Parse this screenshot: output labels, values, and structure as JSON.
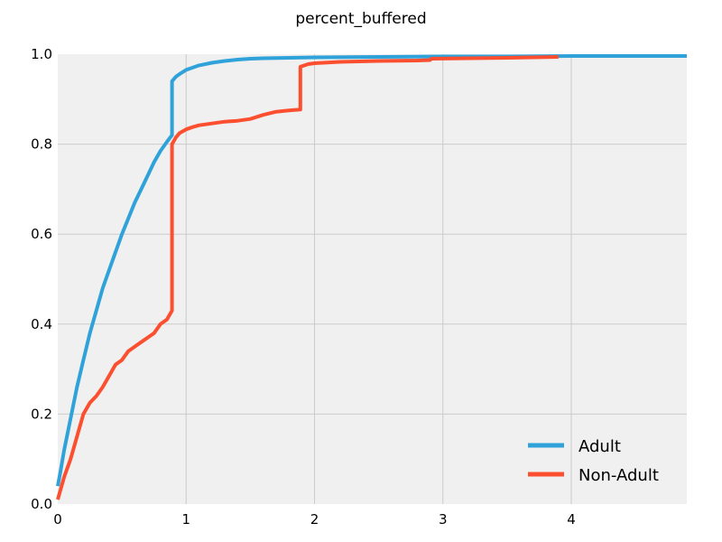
{
  "chart_data": {
    "type": "line",
    "title": "percent_buffered",
    "xlabel": "",
    "ylabel": "",
    "xlim": [
      0,
      4.9
    ],
    "ylim": [
      0,
      1.0
    ],
    "xticks": [
      0,
      1,
      2,
      3,
      4
    ],
    "yticks": [
      0.0,
      0.2,
      0.4,
      0.6,
      0.8,
      1.0
    ],
    "xtick_labels": [
      "0",
      "1",
      "2",
      "3",
      "4"
    ],
    "ytick_labels": [
      "0.0",
      "0.2",
      "0.4",
      "0.6",
      "0.8",
      "1.0"
    ],
    "grid": true,
    "legend_position": "lower-right",
    "series": [
      {
        "name": "Adult",
        "color": "#30a2da",
        "x": [
          0,
          0.02,
          0.05,
          0.1,
          0.15,
          0.2,
          0.25,
          0.3,
          0.35,
          0.4,
          0.45,
          0.5,
          0.55,
          0.6,
          0.65,
          0.7,
          0.75,
          0.8,
          0.85,
          0.89,
          0.89,
          0.92,
          0.96,
          1.0,
          1.1,
          1.2,
          1.3,
          1.4,
          1.5,
          1.6,
          1.8,
          2.0,
          2.5,
          3.0,
          3.5,
          4.0,
          4.5,
          4.9
        ],
        "y": [
          0.04,
          0.07,
          0.12,
          0.19,
          0.26,
          0.32,
          0.38,
          0.43,
          0.48,
          0.52,
          0.56,
          0.6,
          0.635,
          0.67,
          0.7,
          0.73,
          0.76,
          0.785,
          0.805,
          0.82,
          0.94,
          0.95,
          0.958,
          0.965,
          0.975,
          0.981,
          0.985,
          0.988,
          0.99,
          0.991,
          0.992,
          0.993,
          0.994,
          0.995,
          0.995,
          0.996,
          0.996,
          0.996
        ]
      },
      {
        "name": "Non-Adult",
        "color": "#fc4f30",
        "x": [
          0,
          0.02,
          0.05,
          0.1,
          0.15,
          0.2,
          0.25,
          0.3,
          0.35,
          0.4,
          0.45,
          0.5,
          0.55,
          0.6,
          0.65,
          0.7,
          0.75,
          0.8,
          0.85,
          0.89,
          0.89,
          0.92,
          0.95,
          1.0,
          1.05,
          1.1,
          1.2,
          1.3,
          1.4,
          1.5,
          1.6,
          1.7,
          1.8,
          1.89,
          1.89,
          1.95,
          2.0,
          2.2,
          2.5,
          2.8,
          2.9,
          2.91,
          3.2,
          3.5,
          3.9
        ],
        "y": [
          0.01,
          0.03,
          0.06,
          0.1,
          0.15,
          0.2,
          0.225,
          0.24,
          0.26,
          0.285,
          0.31,
          0.32,
          0.34,
          0.35,
          0.36,
          0.37,
          0.38,
          0.4,
          0.41,
          0.43,
          0.8,
          0.815,
          0.825,
          0.833,
          0.838,
          0.842,
          0.846,
          0.85,
          0.852,
          0.856,
          0.865,
          0.872,
          0.875,
          0.877,
          0.972,
          0.978,
          0.98,
          0.983,
          0.985,
          0.986,
          0.987,
          0.99,
          0.991,
          0.992,
          0.994
        ]
      }
    ]
  }
}
